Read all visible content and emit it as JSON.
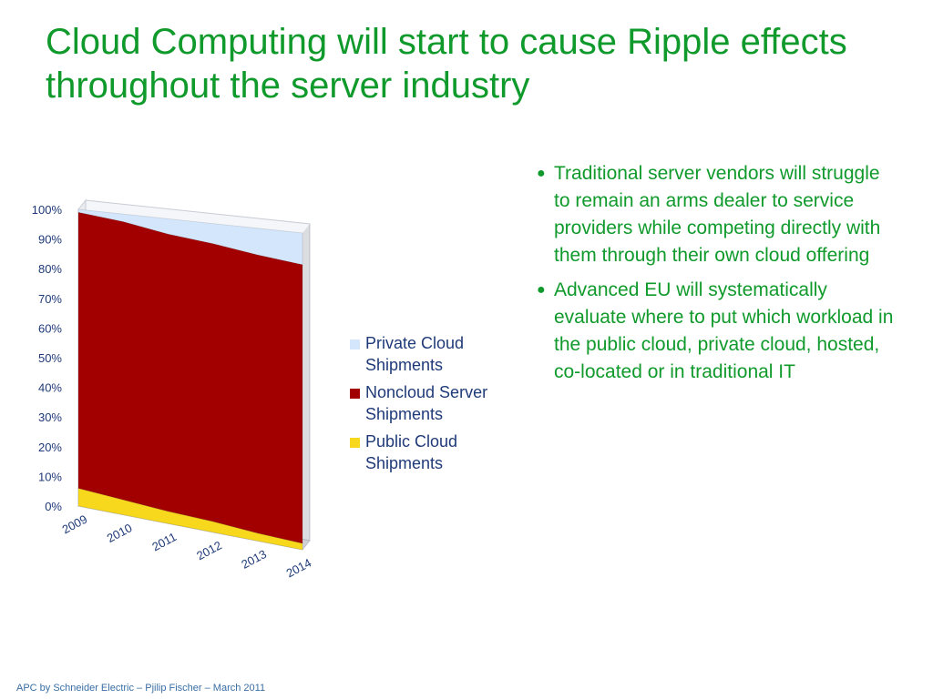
{
  "colors": {
    "title": "#109a2c",
    "bullet_text": "#109a2c",
    "private_cloud": "#d4e6fb",
    "noncloud": "#a20000",
    "public_cloud": "#f7d81c",
    "axis_text": "#1f3a78"
  },
  "slide": {
    "title": "Cloud Computing will start to cause Ripple effects throughout the server industry",
    "bullet_symbol": "●",
    "bullets": [
      "Traditional server vendors will struggle to remain an arms dealer to service providers while competing directly with them through their own cloud offering",
      "Advanced EU will systematically evaluate where to put which workload in the public cloud, private cloud, hosted, co-located or in traditional IT"
    ],
    "footer": "APC by Schneider Electric – Pjilip Fischer – March 2011"
  },
  "chart_data": {
    "type": "area",
    "stacked": true,
    "percent_stacked": true,
    "x": [
      "2009",
      "2010",
      "2011",
      "2012",
      "2013",
      "2014"
    ],
    "ylim": [
      0,
      100
    ],
    "yticks": [
      "0%",
      "10%",
      "20%",
      "30%",
      "40%",
      "50%",
      "60%",
      "70%",
      "80%",
      "90%",
      "100%"
    ],
    "series": [
      {
        "name": "Public Cloud Shipments",
        "values": [
          6,
          5,
          4,
          3.5,
          2.5,
          2
        ]
      },
      {
        "name": "Noncloud Server Shipments",
        "values": [
          93,
          92.5,
          91,
          90,
          89,
          88
        ]
      },
      {
        "name": "Private Cloud Shipments",
        "values": [
          1,
          2.5,
          5,
          6.5,
          8.5,
          10
        ]
      }
    ],
    "legend_position": "right",
    "legend_order": [
      "Private Cloud Shipments",
      "Noncloud Server Shipments",
      "Public Cloud Shipments"
    ],
    "grid": false
  }
}
